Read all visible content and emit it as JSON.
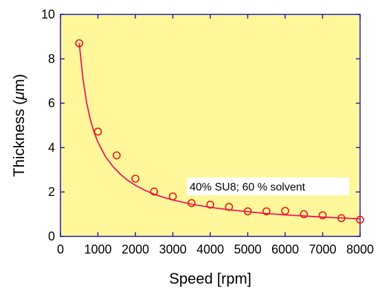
{
  "chart_data": {
    "type": "scatter",
    "xlabel": "Speed  [rpm]",
    "ylabel_main": "Thickness (",
    "ylabel_unit_prefix": "μ",
    "ylabel_unit_rest": "m)",
    "xlim": [
      0,
      8000
    ],
    "ylim": [
      0,
      10
    ],
    "x_ticks": [
      0,
      1000,
      2000,
      3000,
      4000,
      5000,
      6000,
      7000,
      8000
    ],
    "y_ticks": [
      0,
      2,
      4,
      6,
      8,
      10
    ],
    "grid": false,
    "annotation": "40% SU8; 60 % solvent",
    "series": [
      {
        "marker": "open-circle",
        "x": [
          500,
          1000,
          1500,
          2000,
          2500,
          3000,
          3500,
          4000,
          4500,
          5000,
          5500,
          6000,
          6500,
          7000,
          7500,
          8000
        ],
        "y": [
          8.7,
          4.72,
          3.65,
          2.6,
          2.02,
          1.8,
          1.5,
          1.43,
          1.33,
          1.13,
          1.13,
          1.15,
          1.0,
          0.95,
          0.82,
          0.75
        ]
      }
    ],
    "fit_curve": {
      "x": [
        500,
        600,
        700,
        800,
        900,
        1000,
        1200,
        1400,
        1600,
        1800,
        2000,
        2250,
        2500,
        2750,
        3000,
        3500,
        4000,
        4500,
        5000,
        5500,
        6000,
        6500,
        7000,
        7500,
        8000
      ],
      "y": [
        8.7,
        7.1,
        6.0,
        5.25,
        4.68,
        4.25,
        3.6,
        3.15,
        2.8,
        2.52,
        2.3,
        2.08,
        1.9,
        1.76,
        1.64,
        1.45,
        1.31,
        1.2,
        1.11,
        1.03,
        0.97,
        0.92,
        0.87,
        0.83,
        0.79
      ]
    },
    "colors": {
      "plot_background": "#FFF799",
      "axis": "#1A1AA8",
      "series": "#EE1111",
      "fit": "#EE1166",
      "annotation_background": "#FFFFFF"
    }
  }
}
